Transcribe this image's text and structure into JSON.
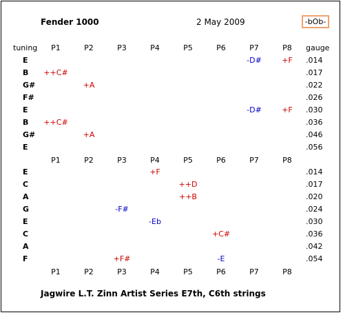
{
  "header": {
    "title": "Fender 1000",
    "date": "2 May 2009",
    "logo": "-bOb-"
  },
  "labels": {
    "tuning": "tuning",
    "gauge": "gauge"
  },
  "pedals": [
    "P1",
    "P2",
    "P3",
    "P4",
    "P5",
    "P6",
    "P7",
    "P8"
  ],
  "colors": {
    "raise": "#cc0000",
    "lower": "#0000cc",
    "logo_border": "#f0a070"
  },
  "neck_e9": {
    "strings": [
      {
        "tuning": "E",
        "gauge": ".014",
        "changes": [
          {
            "pedal": 7,
            "text": "-D#",
            "dir": "lower"
          },
          {
            "pedal": 8,
            "text": "+F",
            "dir": "raise"
          }
        ]
      },
      {
        "tuning": "B",
        "gauge": ".017",
        "changes": [
          {
            "pedal": 1,
            "text": "++C#",
            "dir": "raise"
          }
        ]
      },
      {
        "tuning": "G#",
        "gauge": ".022",
        "changes": [
          {
            "pedal": 2,
            "text": "+A",
            "dir": "raise"
          }
        ]
      },
      {
        "tuning": "F#",
        "gauge": ".026",
        "changes": []
      },
      {
        "tuning": "E",
        "gauge": ".030",
        "changes": [
          {
            "pedal": 7,
            "text": "-D#",
            "dir": "lower"
          },
          {
            "pedal": 8,
            "text": "+F",
            "dir": "raise"
          }
        ]
      },
      {
        "tuning": "B",
        "gauge": ".036",
        "changes": [
          {
            "pedal": 1,
            "text": "++C#",
            "dir": "raise"
          }
        ]
      },
      {
        "tuning": "G#",
        "gauge": ".046",
        "changes": [
          {
            "pedal": 2,
            "text": "+A",
            "dir": "raise"
          }
        ]
      },
      {
        "tuning": "E",
        "gauge": ".056",
        "changes": []
      }
    ]
  },
  "neck_c6": {
    "strings": [
      {
        "tuning": "E",
        "gauge": ".014",
        "changes": [
          {
            "pedal": 4,
            "text": "+F",
            "dir": "raise"
          }
        ]
      },
      {
        "tuning": "C",
        "gauge": ".017",
        "changes": [
          {
            "pedal": 5,
            "text": "++D",
            "dir": "raise"
          }
        ]
      },
      {
        "tuning": "A",
        "gauge": ".020",
        "changes": [
          {
            "pedal": 5,
            "text": "++B",
            "dir": "raise"
          }
        ]
      },
      {
        "tuning": "G",
        "gauge": ".024",
        "changes": [
          {
            "pedal": 3,
            "text": "-F#",
            "dir": "lower"
          }
        ]
      },
      {
        "tuning": "E",
        "gauge": ".030",
        "changes": [
          {
            "pedal": 4,
            "text": "-Eb",
            "dir": "lower"
          }
        ]
      },
      {
        "tuning": "C",
        "gauge": ".036",
        "changes": [
          {
            "pedal": 6,
            "text": "+C#",
            "dir": "raise"
          }
        ]
      },
      {
        "tuning": "A",
        "gauge": ".042",
        "changes": []
      },
      {
        "tuning": "F",
        "gauge": ".054",
        "changes": [
          {
            "pedal": 3,
            "text": "+F#",
            "dir": "raise"
          },
          {
            "pedal": 6,
            "text": "-E",
            "dir": "lower"
          }
        ]
      }
    ]
  },
  "footer": {
    "caption": "Jagwire L.T. Zinn Artist Series E7th, C6th strings"
  }
}
